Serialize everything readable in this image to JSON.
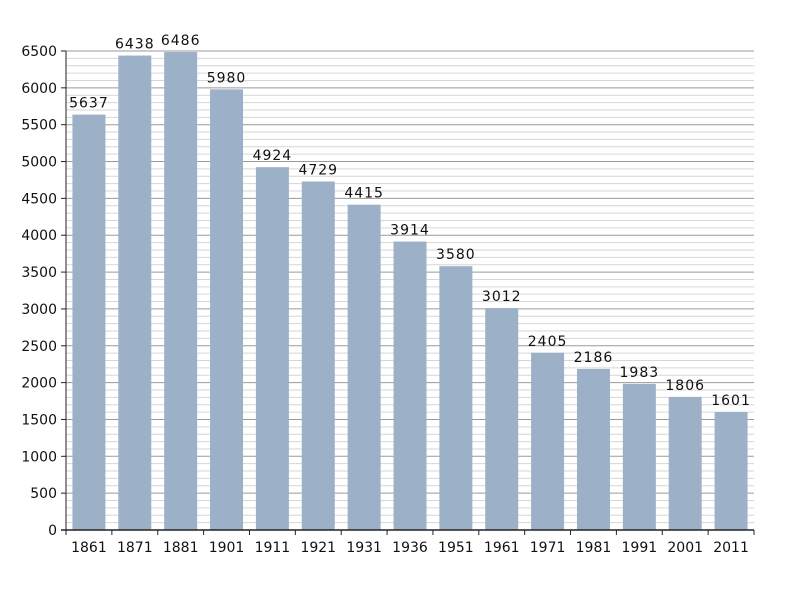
{
  "chart_data": {
    "type": "bar",
    "categories": [
      "1861",
      "1871",
      "1881",
      "1901",
      "1911",
      "1921",
      "1931",
      "1936",
      "1951",
      "1961",
      "1971",
      "1981",
      "1991",
      "2001",
      "2011"
    ],
    "values": [
      5637,
      6438,
      6486,
      5980,
      4924,
      4729,
      4415,
      3914,
      3580,
      3012,
      2405,
      2186,
      1983,
      1806,
      1601
    ],
    "data_labels": [
      "5637",
      "6438",
      "6486",
      "5980",
      "4924",
      "4729",
      "4415",
      "3914",
      "3580",
      "3012",
      "2405",
      "2186",
      "1983",
      "1806",
      "1601"
    ],
    "ylim": [
      0,
      6500
    ],
    "yticks": [
      "0",
      "500",
      "1000",
      "1500",
      "2000",
      "2500",
      "3000",
      "3500",
      "4000",
      "4500",
      "5000",
      "5500",
      "6000",
      "6500"
    ],
    "ytick_values": [
      0,
      500,
      1000,
      1500,
      2000,
      2500,
      3000,
      3500,
      4000,
      4500,
      5000,
      5500,
      6000,
      6500
    ],
    "minor_grid_step": 100,
    "grid": true,
    "legend": false,
    "bar_color": "#9cb1c8",
    "major_grid_color": "#9a9a9a",
    "minor_grid_color": "#d6d6d6"
  }
}
